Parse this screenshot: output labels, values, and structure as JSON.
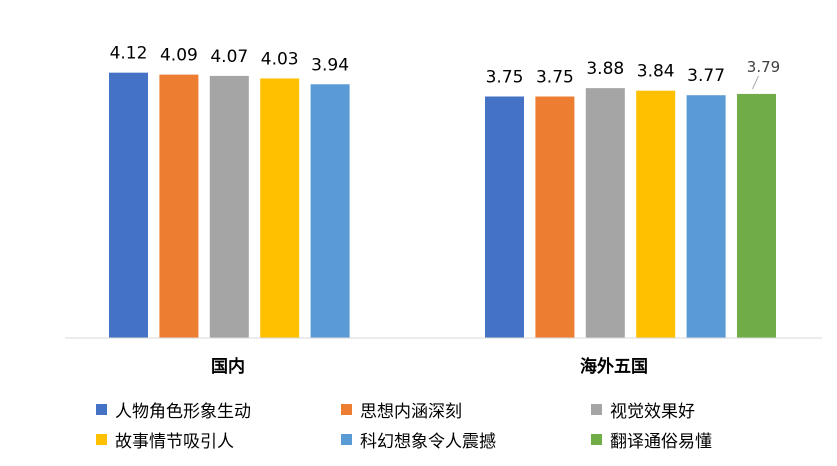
{
  "chart_data": {
    "type": "bar",
    "categories": [
      "国内",
      "海外五国"
    ],
    "series": [
      {
        "name": "人物角色形象生动",
        "color": "#4472C4",
        "values": [
          4.12,
          3.75
        ]
      },
      {
        "name": "思想内涵深刻",
        "color": "#ED7D31",
        "values": [
          4.09,
          3.75
        ]
      },
      {
        "name": "视觉效果好",
        "color": "#A5A5A5",
        "values": [
          4.07,
          3.88
        ]
      },
      {
        "name": "故事情节吸引人",
        "color": "#FFC000",
        "values": [
          4.03,
          3.84
        ]
      },
      {
        "name": "科幻想象令人震撼",
        "color": "#5B9BD5",
        "values": [
          3.94,
          3.77
        ]
      },
      {
        "name": "翻译通俗易懂",
        "color": "#70AD47",
        "values": [
          null,
          3.79
        ]
      }
    ],
    "value_labels": [
      [
        "4.12",
        "3.75"
      ],
      [
        "4.09",
        "3.75"
      ],
      [
        "4.07",
        "3.88"
      ],
      [
        "4.03",
        "3.84"
      ],
      [
        "3.94",
        "3.77"
      ],
      [
        "",
        "3.79"
      ]
    ],
    "legend_position": "bottom",
    "grid": false
  }
}
